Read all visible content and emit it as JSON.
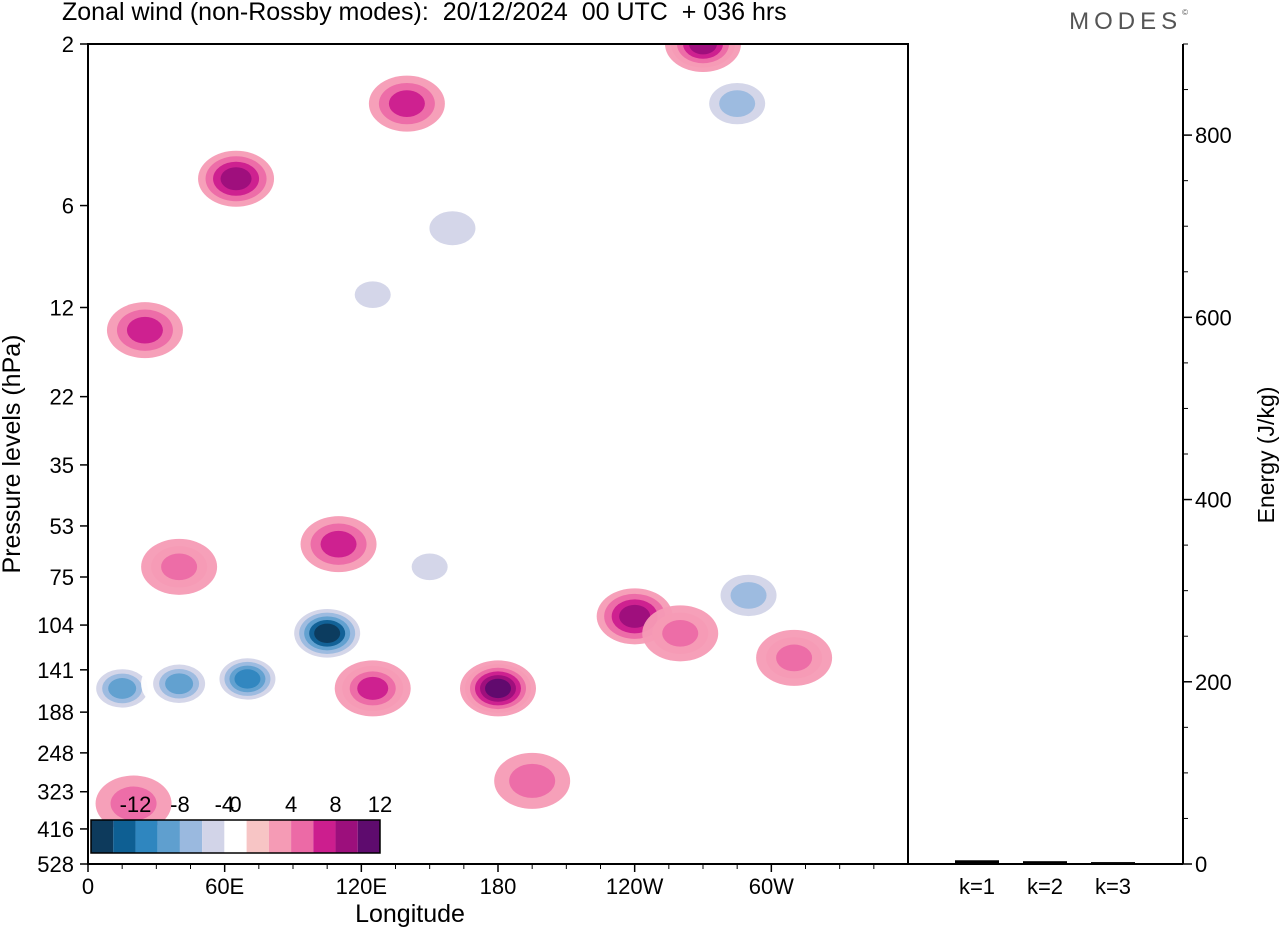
{
  "header": {
    "title": "Zonal wind (non-Rossby modes):  20/12/2024  00 UTC  + 036 hrs",
    "brand": "MODES",
    "brand_mark": "©"
  },
  "chart_data": [
    {
      "type": "heatmap",
      "title": "Zonal wind (non-Rossby modes):  20/12/2024  00 UTC  + 036 hrs",
      "xlabel": "Longitude",
      "ylabel": "Pressure levels (hPa)",
      "x_ticks": [
        "0",
        "60E",
        "120E",
        "180",
        "120W",
        "60W"
      ],
      "x_tick_values": [
        0,
        60,
        120,
        180,
        240,
        300
      ],
      "xlim": [
        0,
        360
      ],
      "y_ticks": [
        "2",
        "6",
        "12",
        "22",
        "35",
        "53",
        "75",
        "104",
        "141",
        "188",
        "248",
        "323",
        "416",
        "528"
      ],
      "y_scale": "log",
      "colorbar": {
        "tick_labels": [
          "-12",
          "-8",
          "-4",
          "0",
          "4",
          "8",
          "12"
        ],
        "levels": [
          -14,
          -12,
          -10,
          -8,
          -6,
          -4,
          -2,
          2,
          4,
          6,
          8,
          10,
          12,
          14
        ],
        "colors": [
          "#0d3a5c",
          "#0e5f93",
          "#2f86bf",
          "#5f9fcf",
          "#9ab9df",
          "#d2d4e8",
          "#ffffff",
          "#f7c5c5",
          "#f59bb5",
          "#ec6aa6",
          "#cc1e8e",
          "#9c0f7c",
          "#5e0b6e"
        ]
      },
      "features": [
        {
          "longitude": 15,
          "pressure": 160,
          "value": -9
        },
        {
          "longitude": 40,
          "pressure": 155,
          "value": -9
        },
        {
          "longitude": 70,
          "pressure": 150,
          "value": -11
        },
        {
          "longitude": 105,
          "pressure": 110,
          "value": -15
        },
        {
          "longitude": 180,
          "pressure": 160,
          "value": 11
        },
        {
          "longitude": 125,
          "pressure": 160,
          "value": 7
        },
        {
          "longitude": 240,
          "pressure": 98,
          "value": 8
        },
        {
          "longitude": 260,
          "pressure": 110,
          "value": 5
        },
        {
          "longitude": 310,
          "pressure": 130,
          "value": 5
        },
        {
          "longitude": 290,
          "pressure": 85,
          "value": -6
        },
        {
          "longitude": 270,
          "pressure": 2,
          "value": 9
        },
        {
          "longitude": 285,
          "pressure": 3,
          "value": -6
        },
        {
          "longitude": 65,
          "pressure": 5,
          "value": 8
        },
        {
          "longitude": 140,
          "pressure": 3,
          "value": 6
        },
        {
          "longitude": 125,
          "pressure": 11,
          "value": -5
        },
        {
          "longitude": 160,
          "pressure": 7,
          "value": -4
        },
        {
          "longitude": 25,
          "pressure": 14,
          "value": 6
        },
        {
          "longitude": 110,
          "pressure": 60,
          "value": 6
        },
        {
          "longitude": 40,
          "pressure": 70,
          "value": 5
        },
        {
          "longitude": 150,
          "pressure": 70,
          "value": -5
        },
        {
          "longitude": 20,
          "pressure": 350,
          "value": 4
        },
        {
          "longitude": 195,
          "pressure": 300,
          "value": 4
        }
      ]
    },
    {
      "type": "bar",
      "categories": [
        "k=1",
        "k=2",
        "k=3"
      ],
      "values": [
        3,
        2,
        1
      ],
      "ylabel": "Energy (J/kg)",
      "ylim": [
        0,
        900
      ],
      "y_ticks": [
        0,
        200,
        400,
        600,
        800
      ]
    }
  ]
}
